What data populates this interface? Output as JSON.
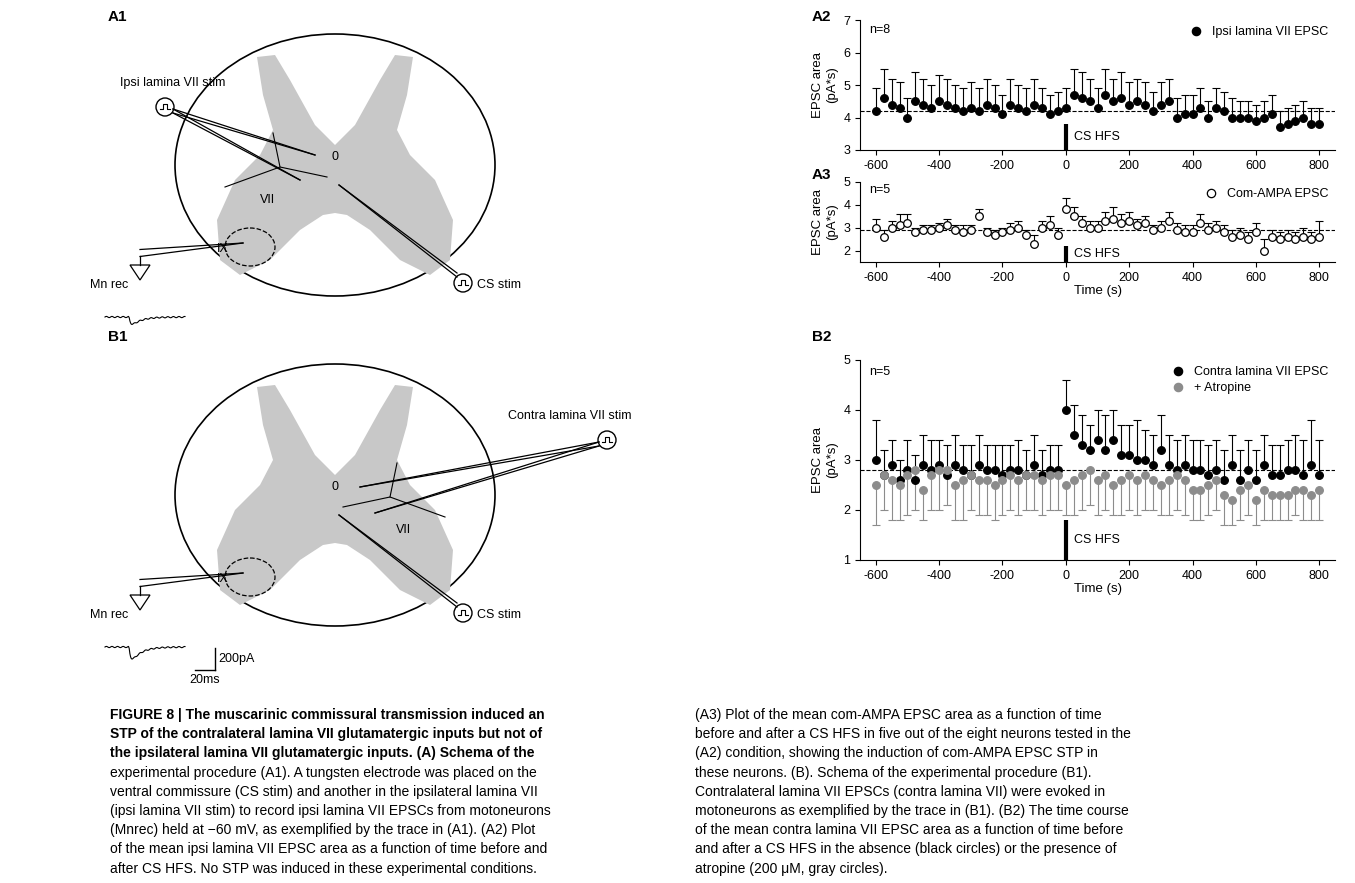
{
  "chart_data": [
    {
      "panel": "A2",
      "type": "scatter",
      "y_label": "EPSC area\n(pA*s)",
      "annotation": "n=8",
      "stimulus": {
        "label": "CS HFS",
        "x": 0
      },
      "baseline": 4.2,
      "x": [
        -600,
        -575,
        -550,
        -525,
        -500,
        -475,
        -450,
        -425,
        -400,
        -375,
        -350,
        -325,
        -300,
        -275,
        -250,
        -225,
        -200,
        -175,
        -150,
        -125,
        -100,
        -75,
        -50,
        -25,
        0,
        25,
        50,
        75,
        100,
        125,
        150,
        175,
        200,
        225,
        250,
        275,
        300,
        325,
        350,
        375,
        400,
        425,
        450,
        475,
        500,
        525,
        550,
        575,
        600,
        625,
        650,
        675,
        700,
        725,
        750,
        775,
        800
      ],
      "series": [
        {
          "name": "Ipsi lamina VII EPSC",
          "color": "#000000",
          "marker": "filled_circle",
          "values": [
            4.2,
            4.6,
            4.4,
            4.3,
            4.0,
            4.5,
            4.4,
            4.3,
            4.5,
            4.4,
            4.3,
            4.2,
            4.3,
            4.2,
            4.4,
            4.3,
            4.1,
            4.4,
            4.3,
            4.2,
            4.4,
            4.3,
            4.1,
            4.2,
            4.3,
            4.7,
            4.6,
            4.5,
            4.3,
            4.7,
            4.5,
            4.6,
            4.4,
            4.5,
            4.4,
            4.2,
            4.4,
            4.5,
            4.0,
            4.1,
            4.1,
            4.3,
            4.0,
            4.3,
            4.2,
            4.0,
            4.0,
            4.0,
            3.9,
            4.0,
            4.1,
            3.7,
            3.8,
            3.9,
            4.0,
            3.8,
            3.8
          ],
          "error_plus": [
            0.7,
            0.9,
            0.8,
            0.8,
            0.6,
            0.9,
            0.8,
            0.7,
            0.8,
            0.8,
            0.7,
            0.7,
            0.8,
            0.7,
            0.8,
            0.7,
            0.6,
            0.8,
            0.7,
            0.7,
            0.8,
            0.6,
            0.6,
            0.6,
            0.6,
            0.8,
            0.8,
            0.7,
            0.6,
            0.8,
            0.7,
            0.8,
            0.7,
            0.7,
            0.7,
            0.6,
            0.7,
            0.7,
            0.6,
            0.6,
            0.6,
            0.6,
            0.5,
            0.6,
            0.6,
            0.6,
            0.5,
            0.5,
            0.5,
            0.5,
            0.6,
            0.5,
            0.5,
            0.5,
            0.5,
            0.5,
            0.5
          ]
        }
      ],
      "xlim": [
        -650,
        850
      ],
      "xticks": [
        -600,
        -400,
        -200,
        0,
        200,
        400,
        600,
        800
      ],
      "ylim": [
        3,
        7
      ],
      "yticks": [
        3,
        4,
        5,
        6,
        7
      ],
      "legend": "upper right"
    },
    {
      "panel": "A3",
      "type": "scatter",
      "y_label": "EPSC area\n(pA*s)",
      "x_label": "Time (s)",
      "annotation": "n=5",
      "stimulus": {
        "label": "CS HFS",
        "x": 0
      },
      "baseline": 2.9,
      "x": [
        -600,
        -575,
        -550,
        -525,
        -500,
        -475,
        -450,
        -425,
        -400,
        -375,
        -350,
        -325,
        -300,
        -275,
        -250,
        -225,
        -200,
        -175,
        -150,
        -125,
        -100,
        -75,
        -50,
        -25,
        0,
        25,
        50,
        75,
        100,
        125,
        150,
        175,
        200,
        225,
        250,
        275,
        300,
        325,
        350,
        375,
        400,
        425,
        450,
        475,
        500,
        525,
        550,
        575,
        600,
        625,
        650,
        675,
        700,
        725,
        750,
        775,
        800
      ],
      "series": [
        {
          "name": "Com-AMPA EPSC",
          "color": "#000000",
          "marker": "open_circle",
          "values": [
            3.0,
            2.6,
            3.0,
            3.1,
            3.2,
            2.8,
            2.9,
            2.9,
            3.0,
            3.1,
            2.9,
            2.8,
            2.9,
            3.5,
            2.8,
            2.7,
            2.8,
            2.9,
            3.0,
            2.7,
            2.3,
            3.0,
            3.1,
            2.7,
            3.8,
            3.5,
            3.2,
            3.0,
            3.0,
            3.3,
            3.4,
            3.2,
            3.3,
            3.1,
            3.2,
            2.9,
            3.0,
            3.3,
            2.9,
            2.8,
            2.8,
            3.2,
            2.9,
            3.0,
            2.8,
            2.6,
            2.7,
            2.5,
            2.8,
            2.0,
            2.6,
            2.5,
            2.6,
            2.5,
            2.6,
            2.5,
            2.6
          ],
          "error_plus": [
            0.4,
            0.3,
            0.3,
            0.5,
            0.4,
            0.2,
            0.2,
            0.2,
            0.2,
            0.3,
            0.2,
            0.3,
            0.2,
            0.3,
            0.2,
            0.2,
            0.2,
            0.3,
            0.3,
            0.2,
            0.4,
            0.3,
            0.4,
            0.3,
            0.5,
            0.4,
            0.3,
            0.3,
            0.3,
            0.4,
            0.5,
            0.4,
            0.4,
            0.3,
            0.3,
            0.2,
            0.3,
            0.4,
            0.3,
            0.3,
            0.3,
            0.4,
            0.3,
            0.3,
            0.3,
            0.3,
            0.3,
            0.3,
            0.4,
            0.5,
            0.3,
            0.3,
            0.3,
            0.3,
            0.4,
            0.3,
            0.7
          ]
        }
      ],
      "xlim": [
        -650,
        850
      ],
      "xticks": [
        -600,
        -400,
        -200,
        0,
        200,
        400,
        600,
        800
      ],
      "ylim": [
        1.5,
        5
      ],
      "yticks": [
        2,
        3,
        4,
        5
      ],
      "legend": "upper right"
    },
    {
      "panel": "B2",
      "type": "scatter",
      "y_label": "EPSC area\n(pA*s)",
      "x_label": "Time (s)",
      "annotation": "n=5",
      "stimulus": {
        "label": "CS HFS",
        "x": 0
      },
      "baseline": 2.8,
      "x": [
        -600,
        -575,
        -550,
        -525,
        -500,
        -475,
        -450,
        -425,
        -400,
        -375,
        -350,
        -325,
        -300,
        -275,
        -250,
        -225,
        -200,
        -175,
        -150,
        -125,
        -100,
        -75,
        -50,
        -25,
        0,
        25,
        50,
        75,
        100,
        125,
        150,
        175,
        200,
        225,
        250,
        275,
        300,
        325,
        350,
        375,
        400,
        425,
        450,
        475,
        500,
        525,
        550,
        575,
        600,
        625,
        650,
        675,
        700,
        725,
        750,
        775,
        800
      ],
      "series": [
        {
          "name": "Contra lamina VII EPSC",
          "color": "#000000",
          "marker": "filled_circle",
          "values": [
            3.0,
            2.7,
            2.9,
            2.6,
            2.8,
            2.6,
            2.9,
            2.8,
            2.9,
            2.7,
            2.9,
            2.8,
            2.7,
            2.9,
            2.8,
            2.8,
            2.7,
            2.8,
            2.8,
            2.7,
            2.9,
            2.7,
            2.8,
            2.8,
            4.0,
            3.5,
            3.3,
            3.2,
            3.4,
            3.2,
            3.4,
            3.1,
            3.1,
            3.0,
            3.0,
            2.9,
            3.2,
            2.9,
            2.8,
            2.9,
            2.8,
            2.8,
            2.7,
            2.8,
            2.6,
            2.9,
            2.6,
            2.8,
            2.6,
            2.9,
            2.7,
            2.7,
            2.8,
            2.8,
            2.7,
            2.9,
            2.7
          ],
          "error_plus": [
            0.8,
            0.5,
            0.5,
            0.4,
            0.6,
            0.5,
            0.6,
            0.6,
            0.5,
            0.6,
            0.6,
            0.5,
            0.6,
            0.6,
            0.5,
            0.5,
            0.6,
            0.5,
            0.6,
            0.5,
            0.6,
            0.5,
            0.5,
            0.5,
            0.6,
            0.6,
            0.6,
            0.5,
            0.6,
            0.7,
            0.6,
            0.6,
            0.6,
            0.8,
            0.6,
            0.6,
            0.7,
            0.6,
            0.6,
            0.6,
            0.6,
            0.6,
            0.6,
            0.6,
            0.6,
            0.6,
            0.6,
            0.6,
            0.6,
            0.6,
            0.6,
            0.6,
            0.6,
            0.7,
            0.7,
            0.9,
            0.7
          ]
        },
        {
          "name": "+ Atropine",
          "color": "#8c8c8c",
          "marker": "filled_circle",
          "values": [
            2.5,
            2.7,
            2.6,
            2.5,
            2.7,
            2.8,
            2.4,
            2.7,
            2.8,
            2.8,
            2.5,
            2.6,
            2.7,
            2.6,
            2.6,
            2.5,
            2.6,
            2.7,
            2.6,
            2.7,
            2.7,
            2.6,
            2.7,
            2.7,
            2.5,
            2.6,
            2.7,
            2.8,
            2.6,
            2.7,
            2.5,
            2.6,
            2.7,
            2.6,
            2.7,
            2.6,
            2.5,
            2.6,
            2.7,
            2.6,
            2.4,
            2.4,
            2.5,
            2.6,
            2.3,
            2.2,
            2.4,
            2.5,
            2.2,
            2.4,
            2.3,
            2.3,
            2.3,
            2.4,
            2.4,
            2.3,
            2.4
          ],
          "error_minus": [
            0.8,
            0.7,
            0.8,
            0.7,
            0.8,
            0.8,
            0.6,
            0.7,
            0.8,
            0.7,
            0.7,
            0.8,
            0.7,
            0.7,
            0.7,
            0.7,
            0.7,
            0.7,
            0.7,
            0.7,
            0.7,
            0.7,
            0.7,
            0.7,
            0.6,
            0.7,
            0.7,
            0.7,
            0.7,
            0.7,
            0.6,
            0.7,
            0.7,
            0.7,
            0.7,
            0.6,
            0.6,
            0.7,
            0.7,
            0.7,
            0.6,
            0.6,
            0.6,
            0.6,
            0.6,
            0.5,
            0.6,
            0.6,
            0.5,
            0.6,
            0.5,
            0.5,
            0.5,
            0.5,
            0.6,
            0.5,
            0.6
          ]
        }
      ],
      "xlim": [
        -650,
        850
      ],
      "xticks": [
        -600,
        -400,
        -200,
        0,
        200,
        400,
        600,
        800
      ],
      "ylim": [
        1,
        5
      ],
      "yticks": [
        1,
        2,
        3,
        4,
        5
      ],
      "legend": "upper right"
    }
  ],
  "diagrams": {
    "A1": {
      "label": "A1",
      "stim_label": "Ipsi lamina VII stim",
      "lamina_labels": [
        "VII",
        "IX"
      ],
      "center_label": "0",
      "rec_label": "Mn rec",
      "cs_label": "CS stim"
    },
    "B1": {
      "label": "B1",
      "stim_label": "Contra lamina VII stim",
      "lamina_labels": [
        "VII",
        "IX"
      ],
      "center_label": "0",
      "rec_label": "Mn rec",
      "cs_label": "CS stim",
      "scale_bar": [
        "200pA",
        "20ms"
      ]
    }
  },
  "caption": {
    "left_title": [
      "FIGURE 8 | The muscarinic commissural transmission induced an",
      "STP of the contralateral lamina VII glutamatergic inputs but not of",
      "the ipsilateral lamina VII glutamatergic inputs. (A) Schema of the"
    ],
    "left_body": [
      "experimental procedure (A1). A tungsten electrode was placed on the",
      "ventral commissure (CS stim) and another in the ipsilateral lamina VII",
      "(ipsi lamina VII stim) to record ipsi lamina VII EPSCs from motoneurons",
      "(Mnrec) held at −60 mV, as exemplified by the trace in (A1). (A2) Plot",
      "of the mean ipsi lamina VII EPSC area as a function of time before and",
      "after CS HFS. No STP was induced in these experimental conditions."
    ],
    "right": [
      "(A3) Plot of the mean com-AMPA EPSC area as a function of time",
      "before and after a CS HFS in five out of the eight neurons tested in the",
      "(A2) condition, showing the induction of com-AMPA EPSC STP in",
      "these neurons. (B). Schema of the experimental procedure (B1).",
      "Contralateral lamina VII EPSCs (contra lamina VII) were evoked in",
      "motoneurons as exemplified by the trace in (B1). (B2) The time course",
      "of the mean contra lamina VII EPSC area as a function of time before",
      "and after a CS HFS in the absence (black circles) or the presence of",
      "atropine (200 μM, gray circles)."
    ]
  }
}
